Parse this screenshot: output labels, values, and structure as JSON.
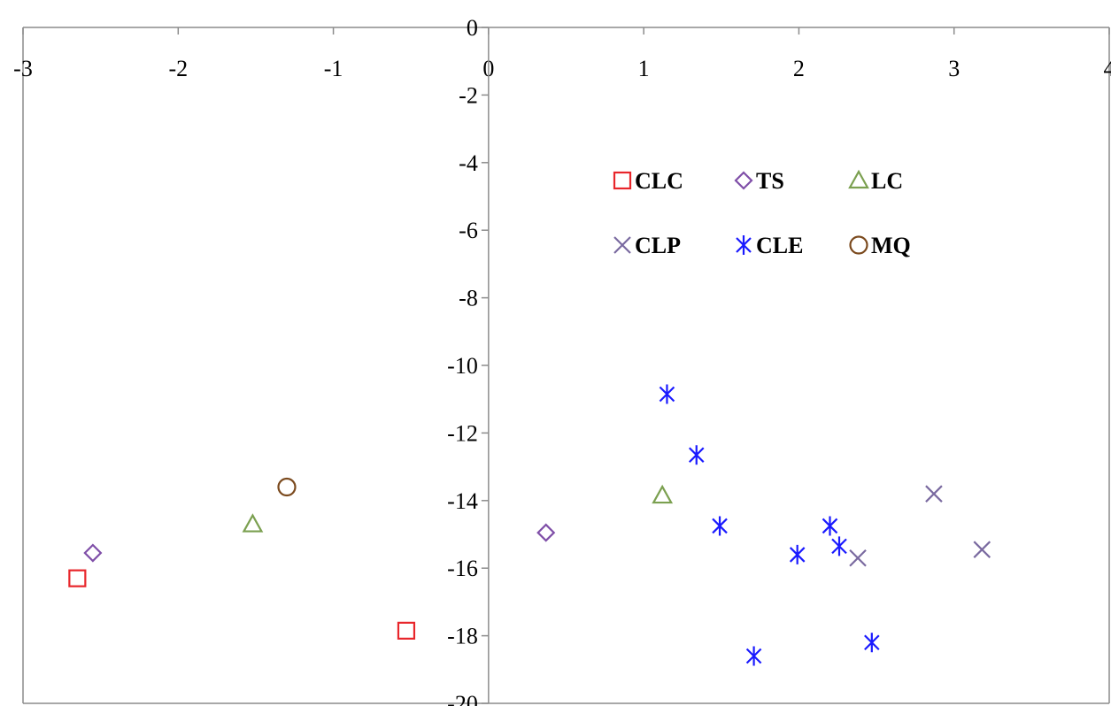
{
  "chart_data": {
    "type": "scatter",
    "xlim": [
      -3,
      4
    ],
    "ylim": [
      -20,
      0
    ],
    "x_ticks": [
      -3,
      -2,
      -1,
      0,
      1,
      2,
      3,
      4
    ],
    "y_ticks": [
      0,
      -2,
      -4,
      -6,
      -8,
      -10,
      -12,
      -14,
      -16,
      -18,
      -20
    ],
    "x_tick_labels": [
      "-3",
      "-2",
      "-1",
      "0",
      "1",
      "2",
      "3",
      "4"
    ],
    "y_tick_labels": [
      "0",
      "-2",
      "-4",
      "-6",
      "-8",
      "-10",
      "-12",
      "-14",
      "-16",
      "-18",
      "-20"
    ],
    "x_axis_position": "top",
    "grid": false,
    "legend_position": "top-right inside plot",
    "series": [
      {
        "name": "CLC",
        "marker": "square",
        "color": "#e8262b",
        "points": [
          [
            -2.65,
            -16.3
          ],
          [
            -0.53,
            -17.85
          ]
        ]
      },
      {
        "name": "TS",
        "marker": "diamond",
        "color": "#7f4fa8",
        "points": [
          [
            -2.55,
            -15.55
          ],
          [
            0.37,
            -14.95
          ]
        ]
      },
      {
        "name": "LC",
        "marker": "triangle",
        "color": "#7ba050",
        "points": [
          [
            -1.52,
            -14.7
          ],
          [
            1.12,
            -13.85
          ]
        ]
      },
      {
        "name": "CLP",
        "marker": "x",
        "color": "#7a6aa0",
        "points": [
          [
            2.38,
            -15.7
          ],
          [
            2.87,
            -13.8
          ],
          [
            3.18,
            -15.45
          ]
        ]
      },
      {
        "name": "CLE",
        "marker": "asterisk",
        "color": "#1a1aff",
        "points": [
          [
            1.15,
            -10.85
          ],
          [
            1.34,
            -12.65
          ],
          [
            1.49,
            -14.75
          ],
          [
            1.71,
            -18.6
          ],
          [
            1.99,
            -15.6
          ],
          [
            2.2,
            -14.75
          ],
          [
            2.26,
            -15.35
          ],
          [
            2.47,
            -18.2
          ]
        ]
      },
      {
        "name": "MQ",
        "marker": "circle",
        "color": "#7b4a1e",
        "points": [
          [
            -1.3,
            -13.6
          ]
        ]
      }
    ]
  }
}
